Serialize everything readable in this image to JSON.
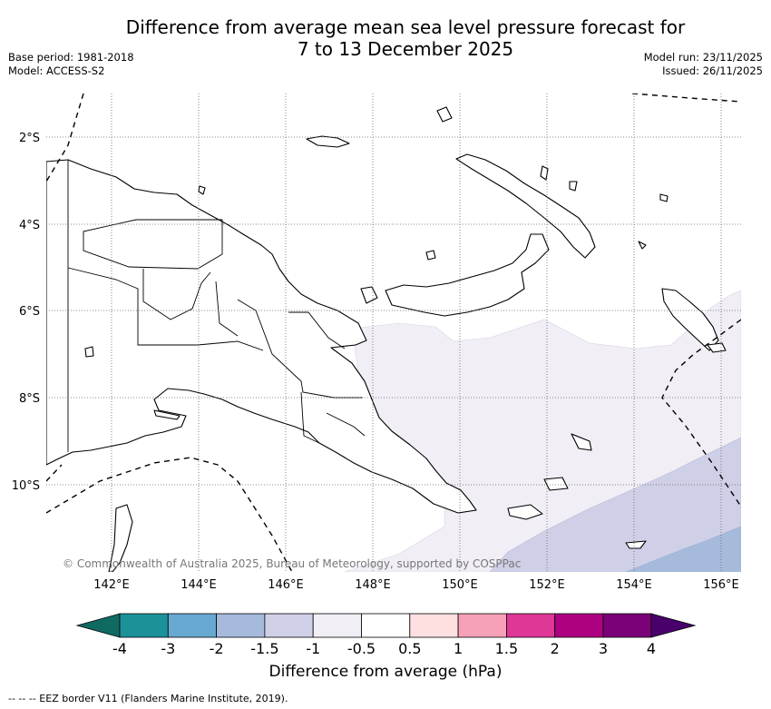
{
  "title_line1": "Difference from average mean sea level pressure forecast for",
  "title_line2": "7 to 13 December 2025",
  "base_period": "Base period: 1981-2018",
  "model": "Model: ACCESS-S2",
  "model_run": "Model run: 23/11/2025",
  "issued": "Issued: 26/11/2025",
  "copyright": "© Commonwealth of Australia 2025, Bureau of Meteorology, supported by COSPPac",
  "lat_labels": [
    "2°S",
    "4°S",
    "6°S",
    "8°S",
    "10°S"
  ],
  "lon_labels": [
    "142°E",
    "144°E",
    "146°E",
    "148°E",
    "150°E",
    "152°E",
    "154°E",
    "156°E"
  ],
  "colorbar": {
    "label": "Difference from average (hPa)",
    "ticks": [
      "-4",
      "-3",
      "-2",
      "-1.5",
      "-1",
      "-0.5",
      "0.5",
      "1",
      "1.5",
      "2",
      "3",
      "4"
    ],
    "colors": [
      "#0f6a62",
      "#1c9199",
      "#67a9d1",
      "#a6bbdc",
      "#cfd0e7",
      "#f1eef6",
      "#ffffff",
      "#fee0e0",
      "#f7a1b8",
      "#de3796",
      "#ad0181",
      "#7a0177",
      "#4a006a"
    ]
  },
  "footnote": "-- -- -- EEZ border V11 (Flanders Marine Institute, 2019)."
}
